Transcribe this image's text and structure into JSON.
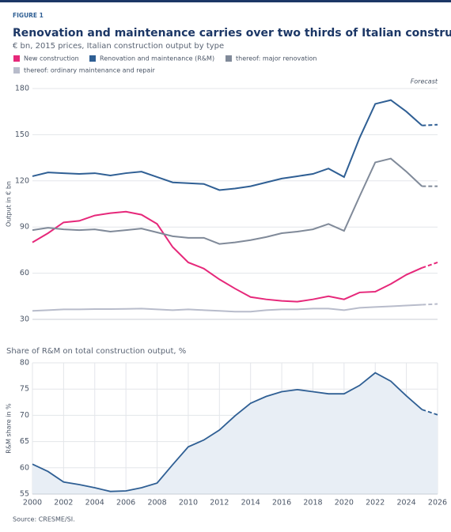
{
  "figure_label": "FIGURE 1",
  "title": "Renovation and maintenance carries over two thirds of Italian construction",
  "subtitle": "€ bn, 2015 prices, Italian construction output by type",
  "source": "Source: CRESME/SI.",
  "chart_data": [
    {
      "type": "line",
      "y_label": "Output in € bn",
      "forecast": {
        "label": "Forecast",
        "from": 2025
      },
      "x": [
        2000,
        2001,
        2002,
        2003,
        2004,
        2005,
        2006,
        2007,
        2008,
        2009,
        2010,
        2011,
        2012,
        2013,
        2014,
        2015,
        2016,
        2017,
        2018,
        2019,
        2020,
        2021,
        2022,
        2023,
        2024,
        2025,
        2026
      ],
      "xlim": [
        2000,
        2026
      ],
      "ylim": [
        30,
        180
      ],
      "yticks": [
        30,
        60,
        90,
        120,
        150,
        180
      ],
      "grid": true,
      "series": [
        {
          "name": "New construction",
          "color": "#e6287a",
          "values": [
            80,
            86,
            93,
            94,
            97.5,
            99,
            100,
            98,
            92,
            77,
            67,
            63,
            56,
            50,
            44.5,
            43,
            42,
            41.5,
            43,
            45,
            43,
            47.5,
            48,
            53,
            59,
            63.5,
            67
          ]
        },
        {
          "name": "Renovation and maintenance (R&M)",
          "color": "#2f5f94",
          "values": [
            123,
            125.5,
            125,
            124.5,
            125,
            123.5,
            125,
            126,
            122.5,
            119,
            118.5,
            118,
            114,
            115,
            116.5,
            119,
            121.5,
            123,
            124.5,
            128,
            122.5,
            148,
            170,
            172.5,
            165,
            156,
            156.5
          ]
        },
        {
          "name": "thereof: major renovation",
          "color": "#808a99",
          "values": [
            88,
            89.5,
            88.5,
            88,
            88.5,
            87,
            88,
            89,
            86.5,
            84,
            83,
            83,
            79,
            80,
            81.5,
            83.5,
            86,
            87,
            88.5,
            92,
            87.5,
            110,
            132,
            134.5,
            126,
            116.5,
            116.5
          ]
        },
        {
          "name": "thereof: ordinary maintenance and repair",
          "color": "#b8bccb",
          "values": [
            35.5,
            36,
            36.5,
            36.5,
            36.7,
            36.7,
            36.8,
            37,
            36.5,
            36,
            36.5,
            36,
            35.5,
            35,
            35,
            36,
            36.5,
            36.5,
            37,
            37,
            36,
            37.5,
            38,
            38.5,
            39,
            39.5,
            40
          ]
        }
      ]
    },
    {
      "type": "area",
      "title": "Share of R&M on total construction output, %",
      "y_label": "R&M share in %",
      "forecast_from": 2025,
      "x": [
        2000,
        2001,
        2002,
        2003,
        2004,
        2005,
        2006,
        2007,
        2008,
        2009,
        2010,
        2011,
        2012,
        2013,
        2014,
        2015,
        2016,
        2017,
        2018,
        2019,
        2020,
        2021,
        2022,
        2023,
        2024,
        2025,
        2026
      ],
      "xlim": [
        2000,
        2026
      ],
      "xticks": [
        2000,
        2002,
        2004,
        2006,
        2008,
        2010,
        2012,
        2014,
        2016,
        2018,
        2020,
        2022,
        2024,
        2026
      ],
      "ylim": [
        55,
        80
      ],
      "yticks": [
        55,
        60,
        65,
        70,
        75,
        80
      ],
      "grid": true,
      "color": "#2f5f94",
      "fill": "#e8eef5",
      "values": [
        60.7,
        59.3,
        57.3,
        56.8,
        56.2,
        55.5,
        55.6,
        56.2,
        57.1,
        60.6,
        64,
        65.3,
        67.2,
        69.9,
        72.3,
        73.6,
        74.5,
        74.9,
        74.5,
        74.1,
        74.1,
        75.7,
        78.1,
        76.5,
        73.7,
        71.1,
        70.1
      ]
    }
  ]
}
